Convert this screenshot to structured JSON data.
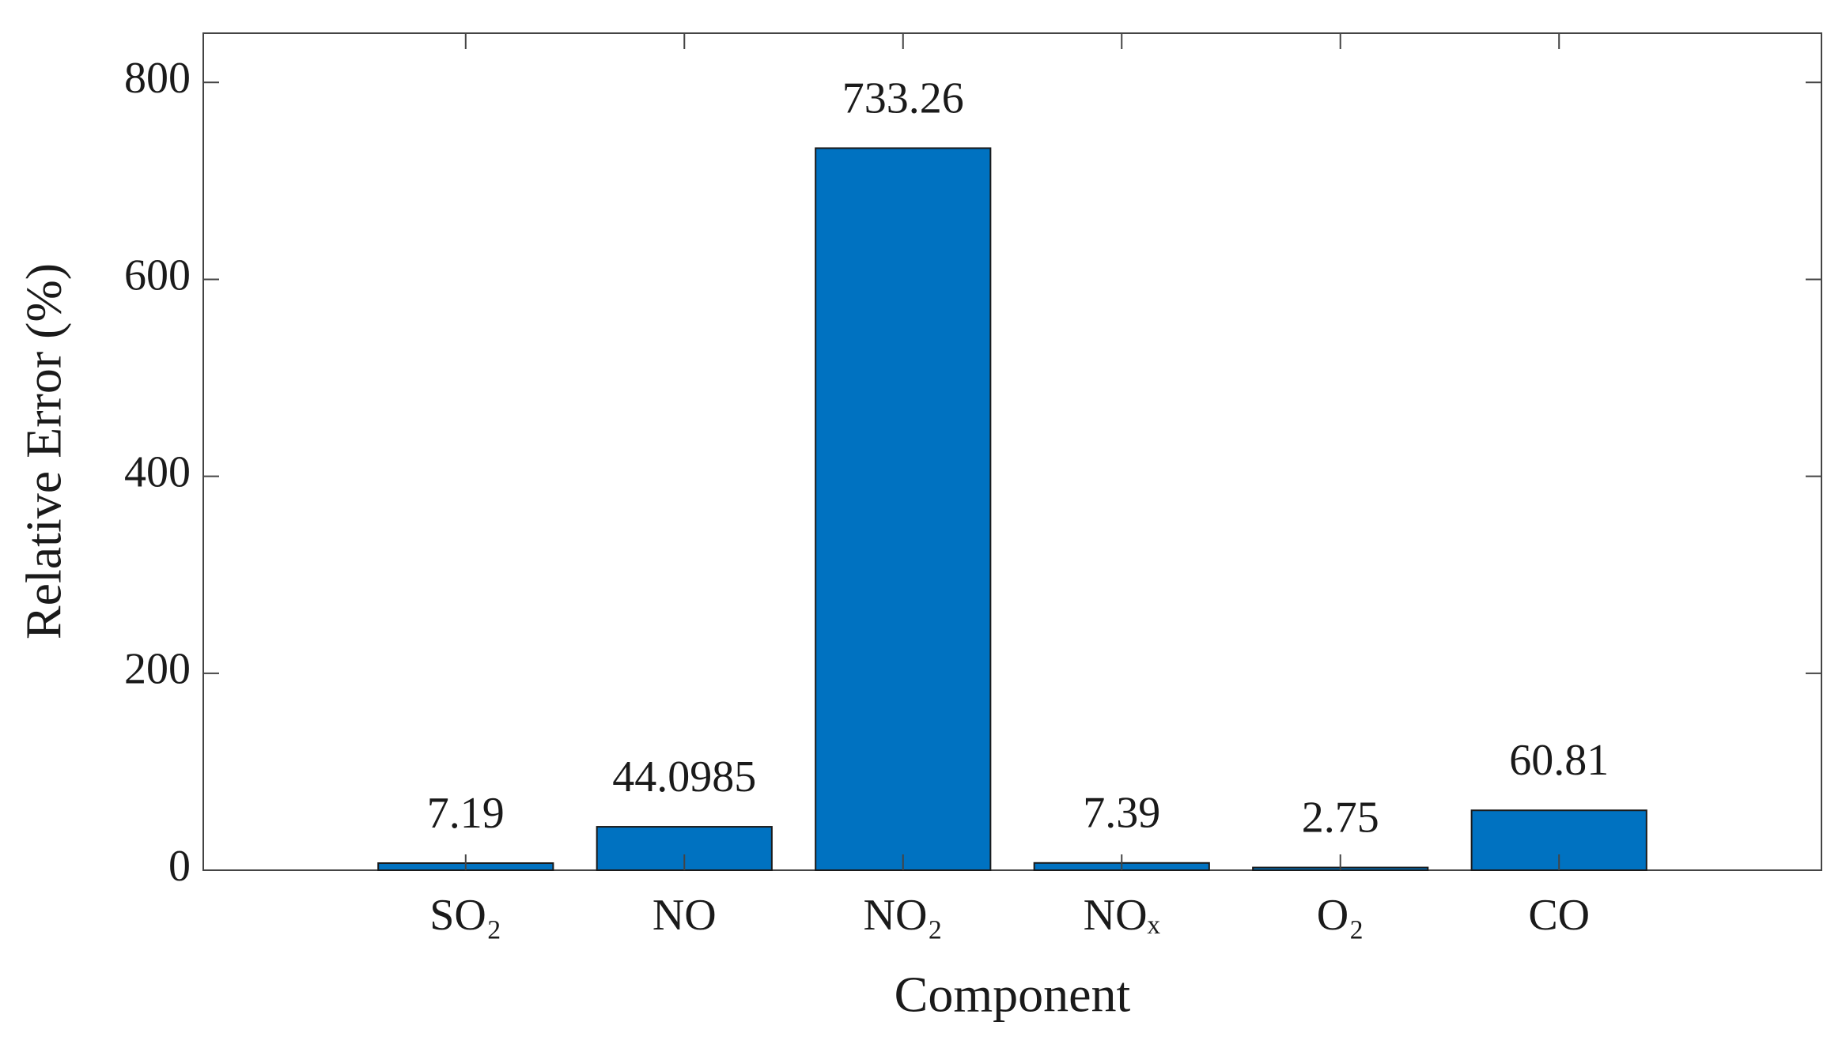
{
  "chart_data": {
    "type": "bar",
    "x_label": "Component",
    "y_label": "Relative Error (%)",
    "categories": [
      "SO₂",
      "NO",
      "NO₂",
      "NOₓ",
      "O₂",
      "CO"
    ],
    "values": [
      7.19,
      44.0985,
      733.26,
      7.39,
      2.75,
      60.81
    ],
    "color": "#0072c1",
    "ylim": [
      0,
      850
    ],
    "yticks": [
      0,
      200,
      400,
      600,
      800
    ],
    "grid": false
  }
}
